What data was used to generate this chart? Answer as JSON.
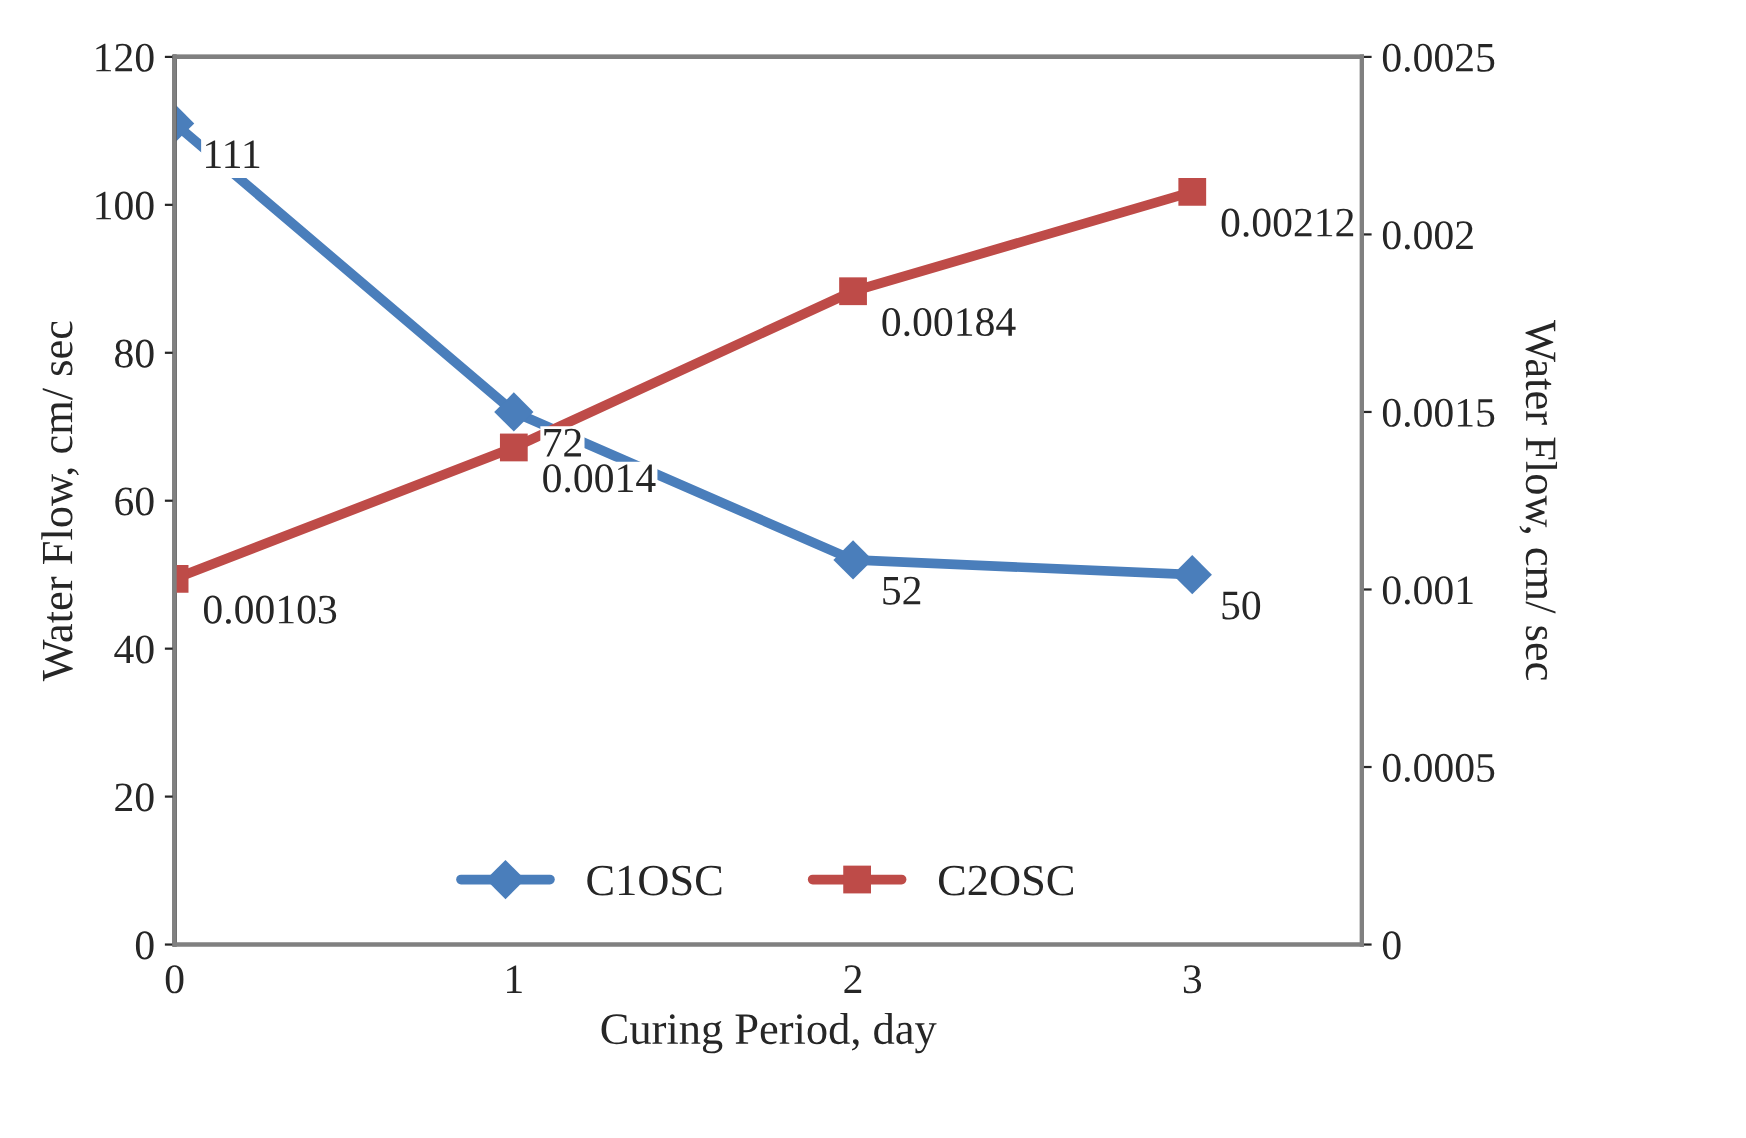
{
  "chart_data": {
    "type": "line",
    "xlabel": "Curing Period, day",
    "ylabel": "Water Flow, cm/ sec",
    "y2label": "Water Flow, cm/ sec",
    "x": [
      0,
      1,
      2,
      3
    ],
    "xlim": [
      0,
      3.5
    ],
    "xticks": [
      0,
      1,
      2,
      3
    ],
    "ylim": [
      0,
      120
    ],
    "yticks": [
      0,
      20,
      40,
      60,
      80,
      100,
      120
    ],
    "y2lim": [
      0,
      0.0025
    ],
    "y2ticks": [
      {
        "value": 0,
        "label": "0"
      },
      {
        "value": 0.0005,
        "label": "0.0005"
      },
      {
        "value": 0.001,
        "label": "0.001"
      },
      {
        "value": 0.0015,
        "label": "0.0015"
      },
      {
        "value": 0.002,
        "label": "0.002"
      },
      {
        "value": 0.0025,
        "label": "0.0025"
      }
    ],
    "series": [
      {
        "name": "C1OSC",
        "color": "#4a7ebb",
        "marker": "diamond",
        "values": [
          111,
          72,
          52,
          50
        ]
      },
      {
        "name": "C2OSC",
        "color": "#be4b48",
        "marker": "square",
        "axis": "y2",
        "values": [
          0.00103,
          0.0014,
          0.00184,
          0.00212
        ]
      }
    ],
    "data_labels": true,
    "legend": "bottom",
    "grid": false,
    "line_style": "solid"
  }
}
